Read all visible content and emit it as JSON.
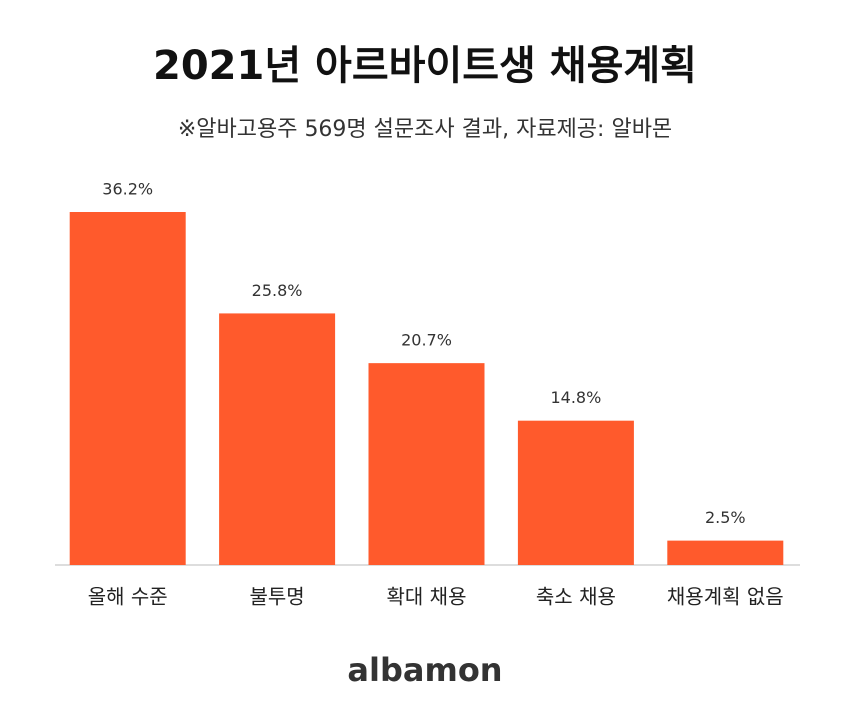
{
  "chart_data": {
    "type": "bar",
    "title": "2021년 아르바이트생 채용계획",
    "subtitle": "※알바고용주 569명  설문조사 결과, 자료제공: 알바몬",
    "categories": [
      "올해 수준",
      "불투명",
      "확대 채용",
      "축소 채용",
      "채용계획 없음"
    ],
    "values": [
      36.2,
      25.8,
      20.7,
      14.8,
      2.5
    ],
    "value_labels": [
      "36.2%",
      "25.8%",
      "20.7%",
      "14.8%",
      "2.5%"
    ],
    "color": "#ff5a2c",
    "logo": "albamon"
  }
}
